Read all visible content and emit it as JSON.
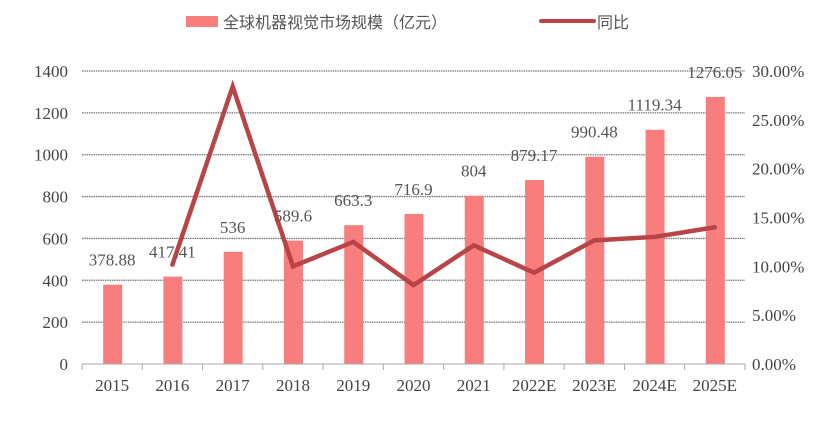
{
  "chart_data": {
    "type": "bar+line",
    "categories": [
      "2015",
      "2016",
      "2017",
      "2018",
      "2019",
      "2020",
      "2021",
      "2022E",
      "2023E",
      "2024E",
      "2025E"
    ],
    "series": [
      {
        "name": "全球机器视觉市场规模（亿元）",
        "type": "bar",
        "axis": "left",
        "color": "#f87e7e",
        "values": [
          378.88,
          417.41,
          536,
          589.6,
          663.3,
          716.9,
          804,
          879.17,
          990.48,
          1119.34,
          1276.05
        ],
        "labels": [
          "378.88",
          "417.41",
          "536",
          "589.6",
          "663.3",
          "716.9",
          "804",
          "879.17",
          "990.48",
          "1119.34",
          "1276.05"
        ]
      },
      {
        "name": "同比",
        "type": "line",
        "axis": "right",
        "color": "#b84448",
        "values": [
          null,
          10.17,
          28.41,
          10.0,
          12.5,
          8.08,
          12.15,
          9.35,
          12.66,
          13.01,
          14.0
        ]
      }
    ],
    "left_axis": {
      "min": 0,
      "max": 1400,
      "ticks": [
        "0",
        "200",
        "400",
        "600",
        "800",
        "1000",
        "1200",
        "1400"
      ]
    },
    "right_axis": {
      "min": 0,
      "max": 30,
      "ticks": [
        "0.00%",
        "5.00%",
        "10.00%",
        "15.00%",
        "20.00%",
        "25.00%",
        "30.00%"
      ]
    },
    "grid": true,
    "legend_position": "top"
  }
}
